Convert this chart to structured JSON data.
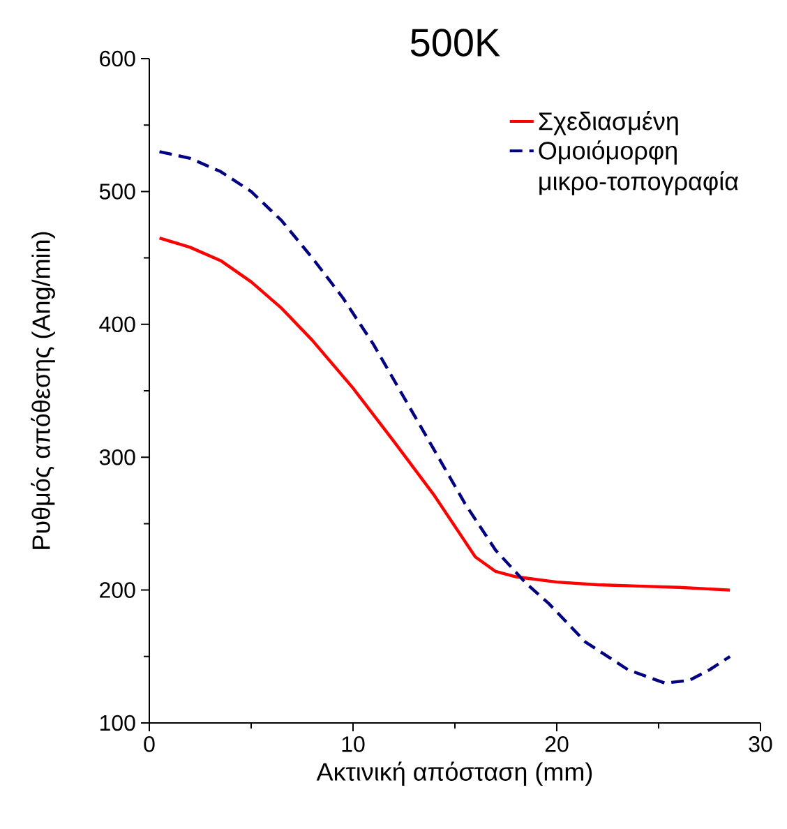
{
  "chart_data": {
    "type": "line",
    "title": "500K",
    "xlabel": "Ακτινική απόσταση (mm)",
    "ylabel": "Ρυθμός απόθεσης (Ang/min)",
    "xlim": [
      0,
      30
    ],
    "xticks": [
      0,
      10,
      20,
      30
    ],
    "ylim": [
      100,
      600
    ],
    "yticks": [
      100,
      200,
      300,
      400,
      500,
      600
    ],
    "legend": "top right",
    "grid": false,
    "series": [
      {
        "name": "Σχεδιασμένη",
        "color": "#ff0000",
        "line_style": "solid",
        "x": [
          0.5,
          2,
          3.5,
          5,
          6.5,
          8,
          10,
          12,
          14,
          15,
          16,
          17,
          18,
          20,
          22,
          24,
          26,
          28.5
        ],
        "values": [
          465,
          458,
          448,
          432,
          412,
          388,
          352,
          312,
          271,
          248,
          225,
          214,
          210,
          206,
          204,
          203,
          202,
          200
        ]
      },
      {
        "name": "Ομοιόμορφη μικρο-τοπογραφία",
        "color": "#000080",
        "line_style": "dashed",
        "x": [
          0.5,
          2,
          3.5,
          5,
          6.5,
          8,
          9.5,
          11,
          12.5,
          14,
          15.5,
          17,
          18.5,
          19.6,
          21.4,
          23.5,
          25.3,
          26.5,
          27.5,
          28.5
        ],
        "values": [
          530,
          525,
          515,
          500,
          478,
          450,
          420,
          385,
          345,
          305,
          265,
          230,
          205,
          190,
          161,
          140,
          130,
          132,
          140,
          150
        ]
      }
    ]
  }
}
